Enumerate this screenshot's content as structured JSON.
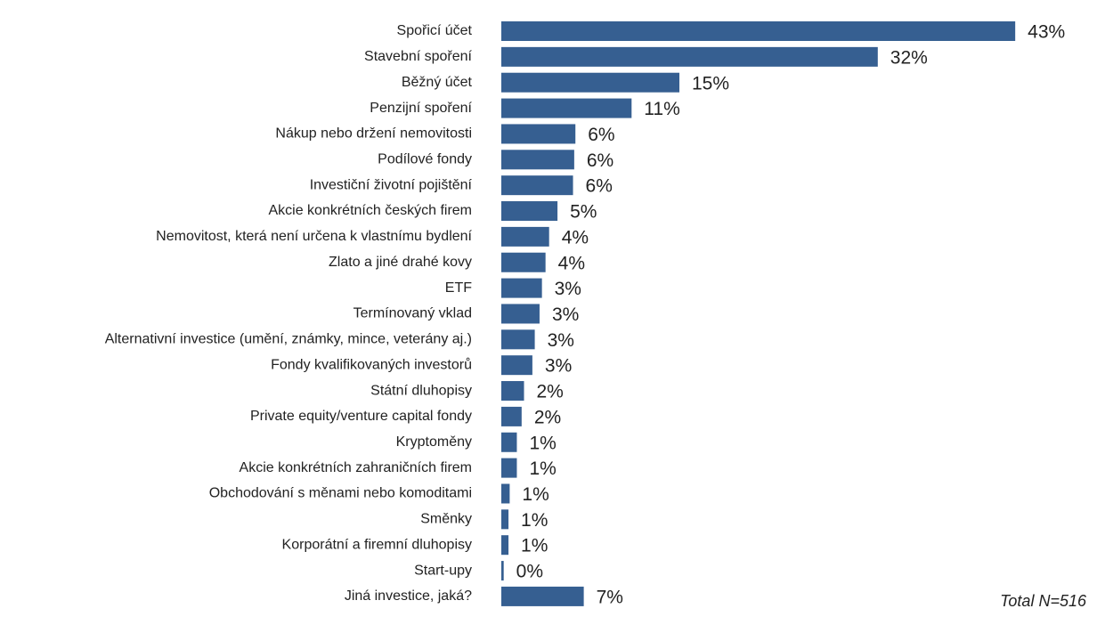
{
  "chart_data": {
    "type": "bar",
    "orientation": "horizontal",
    "color": "#365f91",
    "categories": [
      "Spořicí účet",
      "Stavební spoření",
      "Běžný účet",
      "Penzijní spoření",
      "Nákup nebo držení nemovitosti",
      "Podílové fondy",
      "Investiční životní pojištění",
      "Akcie konkrétních českých firem",
      "Nemovitost, která není určena k vlastnímu bydlení",
      "Zlato a jiné drahé kovy",
      "ETF",
      "Termínovaný vklad",
      "Alternativní investice (umění, známky, mince, veterány aj.)",
      "Fondy kvalifikovaných investorů",
      "Státní dluhopisy",
      "Private equity/venture capital fondy",
      "Kryptoměny",
      "Akcie konkrétních zahraničních firem",
      "Obchodování s měnami nebo komoditami",
      "Směnky",
      "Korporátní a firemní dluhopisy",
      "Start-upy",
      "Jiná investice, jaká?"
    ],
    "values": [
      43,
      31.5,
      14.9,
      10.9,
      6.2,
      6.1,
      6.0,
      4.7,
      4.0,
      3.7,
      3.4,
      3.2,
      2.8,
      2.6,
      1.9,
      1.7,
      1.3,
      1.3,
      0.7,
      0.6,
      0.6,
      0.2,
      6.9
    ],
    "value_labels": [
      "43%",
      "32%",
      "15%",
      "11%",
      "6%",
      "6%",
      "6%",
      "5%",
      "4%",
      "4%",
      "3%",
      "3%",
      "3%",
      "3%",
      "2%",
      "2%",
      "1%",
      "1%",
      "1%",
      "1%",
      "1%",
      "0%",
      "7%"
    ],
    "xlim": [
      0,
      45
    ],
    "annotation": "Total N=516"
  }
}
